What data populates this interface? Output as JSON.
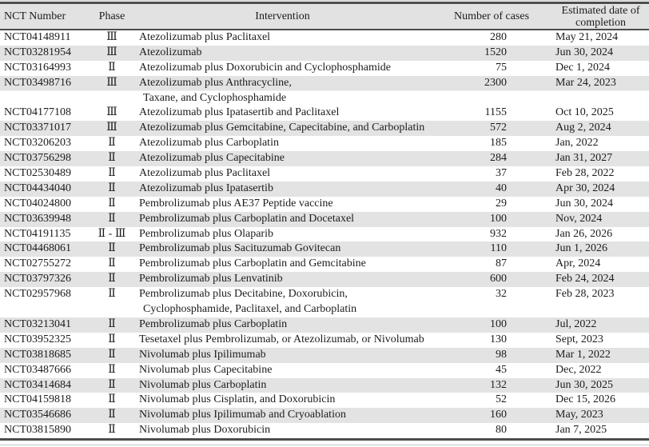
{
  "colors": {
    "bg": "#ffffff",
    "stripe": "#e3e3e3",
    "header-bg": "#e2e2e2",
    "rule-dark": "#4d4d4d",
    "rule-thin": "#c9c9c9",
    "text": "#1c1c1c"
  },
  "table": {
    "columns": [
      {
        "key": "nct",
        "label": "NCT Number"
      },
      {
        "key": "phase",
        "label": "Phase"
      },
      {
        "key": "intervention",
        "label": "Intervention"
      },
      {
        "key": "cases",
        "label": "Number of cases"
      },
      {
        "key": "date",
        "label": "Estimated date of completion"
      }
    ],
    "rows": [
      {
        "nct": "NCT04148911",
        "phase": "Ⅲ",
        "intervention": [
          "Atezolizumab plus Paclitaxel"
        ],
        "cases": "280",
        "date": "May 21, 2024"
      },
      {
        "nct": "NCT03281954",
        "phase": "Ⅲ",
        "intervention": [
          "Atezolizumab"
        ],
        "cases": "1520",
        "date": "Jun 30, 2024"
      },
      {
        "nct": "NCT03164993",
        "phase": "Ⅱ",
        "intervention": [
          "Atezolizumab plus Doxorubicin and Cyclophosphamide"
        ],
        "cases": "75",
        "date": "Dec 1, 2024"
      },
      {
        "nct": "NCT03498716",
        "phase": "Ⅲ",
        "intervention": [
          "Atezolizumab plus Anthracycline,",
          "Taxane, and Cyclophosphamide"
        ],
        "cases": "2300",
        "date": "Mar 24, 2023"
      },
      {
        "nct": "NCT04177108",
        "phase": "Ⅲ",
        "intervention": [
          "Atezolizumab plus Ipatasertib and Paclitaxel"
        ],
        "cases": "1155",
        "date": "Oct 10, 2025"
      },
      {
        "nct": "NCT03371017",
        "phase": "Ⅲ",
        "intervention": [
          "Atezolizumab plus Gemcitabine, Capecitabine, and Carboplatin"
        ],
        "cases": "572",
        "date": "Aug 2, 2024"
      },
      {
        "nct": "NCT03206203",
        "phase": "Ⅱ",
        "intervention": [
          "Atezolizumab plus Carboplatin"
        ],
        "cases": "185",
        "date": "Jan, 2022"
      },
      {
        "nct": "NCT03756298",
        "phase": "Ⅱ",
        "intervention": [
          "Atezolizumab plus Capecitabine"
        ],
        "cases": "284",
        "date": "Jan 31, 2027"
      },
      {
        "nct": "NCT02530489",
        "phase": "Ⅱ",
        "intervention": [
          "Atezolizumab plus Paclitaxel"
        ],
        "cases": "37",
        "date": "Feb 28, 2022"
      },
      {
        "nct": "NCT04434040",
        "phase": "Ⅱ",
        "intervention": [
          "Atezolizumab plus Ipatasertib"
        ],
        "cases": "40",
        "date": "Apr 30, 2024"
      },
      {
        "nct": "NCT04024800",
        "phase": "Ⅱ",
        "intervention": [
          "Pembrolizumab plus AE37 Peptide vaccine"
        ],
        "cases": "29",
        "date": "Jun 30, 2024"
      },
      {
        "nct": "NCT03639948",
        "phase": "Ⅱ",
        "intervention": [
          "Pembrolizumab plus Carboplatin and Docetaxel"
        ],
        "cases": "100",
        "date": "Nov, 2024"
      },
      {
        "nct": "NCT04191135",
        "phase": "Ⅱ - Ⅲ",
        "intervention": [
          "Pembrolizumab plus Olaparib"
        ],
        "cases": "932",
        "date": "Jan 26, 2026"
      },
      {
        "nct": "NCT04468061",
        "phase": "Ⅱ",
        "intervention": [
          "Pembrolizumab plus Sacituzumab Govitecan"
        ],
        "cases": "110",
        "date": "Jun 1, 2026"
      },
      {
        "nct": "NCT02755272",
        "phase": "Ⅱ",
        "intervention": [
          "Pembrolizumab plus Carboplatin and Gemcitabine"
        ],
        "cases": "87",
        "date": "Apr, 2024"
      },
      {
        "nct": "NCT03797326",
        "phase": "Ⅱ",
        "intervention": [
          "Pembrolizumab plus Lenvatinib"
        ],
        "cases": "600",
        "date": "Feb 24, 2024"
      },
      {
        "nct": "NCT02957968",
        "phase": "Ⅱ",
        "intervention": [
          "Pembrolizumab plus Decitabine, Doxorubicin,",
          "Cyclophosphamide, Paclitaxel, and Carboplatin"
        ],
        "cases": "32",
        "date": "Feb 28, 2023"
      },
      {
        "nct": "NCT03213041",
        "phase": "Ⅱ",
        "intervention": [
          "Pembrolizumab plus Carboplatin"
        ],
        "cases": "100",
        "date": "Jul, 2022"
      },
      {
        "nct": "NCT03952325",
        "phase": "Ⅱ",
        "intervention": [
          "Tesetaxel plus Pembrolizumab, or Atezolizumab, or Nivolumab"
        ],
        "cases": "130",
        "date": "Sept, 2023"
      },
      {
        "nct": "NCT03818685",
        "phase": "Ⅱ",
        "intervention": [
          "Nivolumab plus Ipilimumab"
        ],
        "cases": "98",
        "date": "Mar 1, 2022"
      },
      {
        "nct": "NCT03487666",
        "phase": "Ⅱ",
        "intervention": [
          "Nivolumab plus Capecitabine"
        ],
        "cases": "45",
        "date": "Dec, 2022"
      },
      {
        "nct": "NCT03414684",
        "phase": "Ⅱ",
        "intervention": [
          "Nivolumab plus Carboplatin"
        ],
        "cases": "132",
        "date": "Jun 30, 2025"
      },
      {
        "nct": "NCT04159818",
        "phase": "Ⅱ",
        "intervention": [
          "Nivolumab plus Cisplatin, and Doxorubicin"
        ],
        "cases": "52",
        "date": "Dec 15, 2026"
      },
      {
        "nct": "NCT03546686",
        "phase": "Ⅱ",
        "intervention": [
          "Nivolumab plus Ipilimumab and Cryoablation"
        ],
        "cases": "160",
        "date": "May, 2023"
      },
      {
        "nct": "NCT03815890",
        "phase": "Ⅱ",
        "intervention": [
          "Nivolumab plus Doxorubicin"
        ],
        "cases": "80",
        "date": "Jan 7, 2025"
      }
    ]
  }
}
